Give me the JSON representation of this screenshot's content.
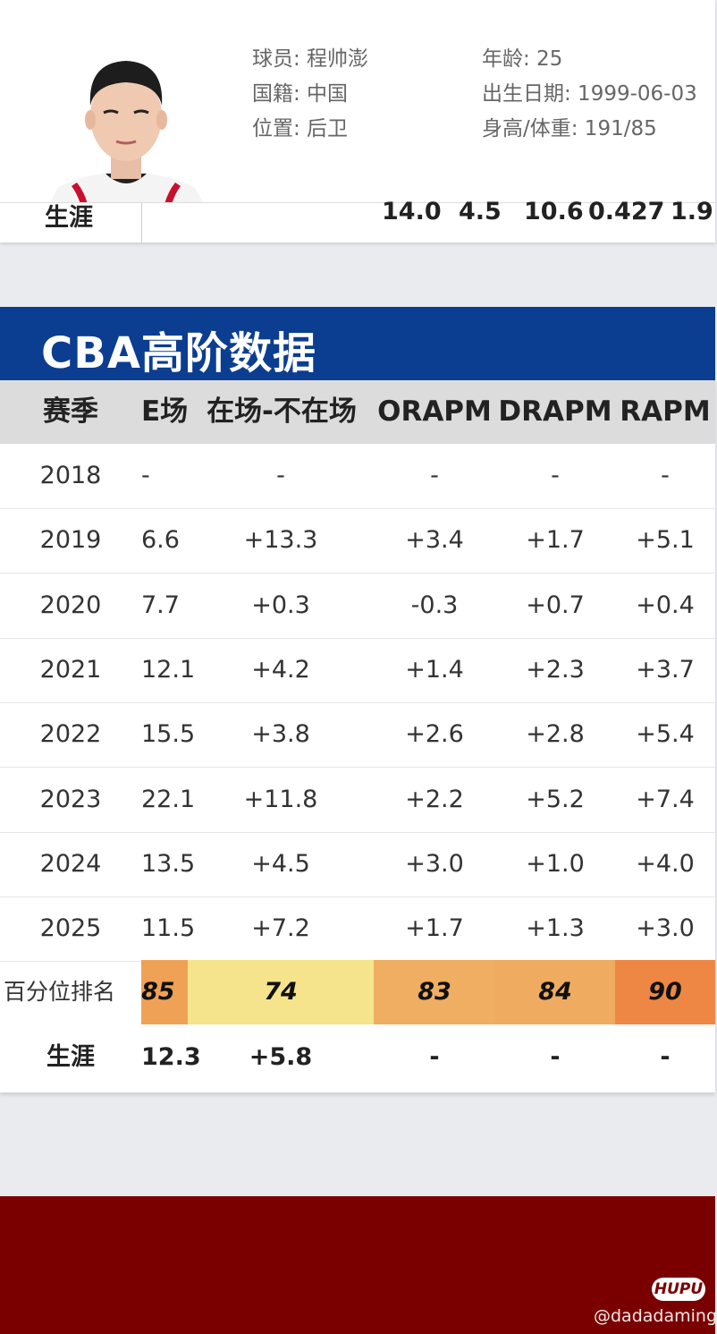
{
  "player": {
    "name_line": "球员: 程帅澎",
    "nationality_line": "国籍: 中国",
    "position_line": "位置: 后卫",
    "age_line": "年龄: 25",
    "birth_line": "出生日期: 1999-06-03",
    "height_weight_line": "身高/体重: 191/85"
  },
  "career_strip": {
    "label": "生涯",
    "values": [
      "14.0",
      "4.5",
      "10.6",
      "0.427",
      "1.9"
    ]
  },
  "section": {
    "title": "CBA高阶数据"
  },
  "table": {
    "headers": [
      "赛季",
      "E场",
      "在场-不在场",
      "ORAPM",
      "DRAPM",
      "RAPM"
    ],
    "rows": [
      {
        "season": "2018",
        "c1": "-",
        "c2": "-",
        "c3": "-",
        "c4": "-",
        "c5": "-"
      },
      {
        "season": "2019",
        "c1": "6.6",
        "c2": "+13.3",
        "c3": "+3.4",
        "c4": "+1.7",
        "c5": "+5.1"
      },
      {
        "season": "2020",
        "c1": "7.7",
        "c2": "+0.3",
        "c3": "-0.3",
        "c4": "+0.7",
        "c5": "+0.4"
      },
      {
        "season": "2021",
        "c1": "12.1",
        "c2": "+4.2",
        "c3": "+1.4",
        "c4": "+2.3",
        "c5": "+3.7"
      },
      {
        "season": "2022",
        "c1": "15.5",
        "c2": "+3.8",
        "c3": "+2.6",
        "c4": "+2.8",
        "c5": "+5.4"
      },
      {
        "season": "2023",
        "c1": "22.1",
        "c2": "+11.8",
        "c3": "+2.2",
        "c4": "+5.2",
        "c5": "+7.4"
      },
      {
        "season": "2024",
        "c1": "13.5",
        "c2": "+4.5",
        "c3": "+3.0",
        "c4": "+1.0",
        "c5": "+4.0"
      },
      {
        "season": "2025",
        "c1": "11.5",
        "c2": "+7.2",
        "c3": "+1.7",
        "c4": "+1.3",
        "c5": "+3.0"
      }
    ],
    "rank": {
      "label": "百分位排名",
      "values": [
        "85",
        "74",
        "83",
        "84",
        "90"
      ],
      "colors": [
        "#efa256",
        "#f6e48c",
        "#efae62",
        "#efab5f",
        "#ee8744"
      ]
    },
    "career": {
      "label": "生涯",
      "c1": "12.3",
      "c2": "+5.8",
      "c3": "-",
      "c4": "-",
      "c5": "-"
    }
  },
  "footer": {
    "logo": "HUPU",
    "watermark": "@dadadaming"
  }
}
